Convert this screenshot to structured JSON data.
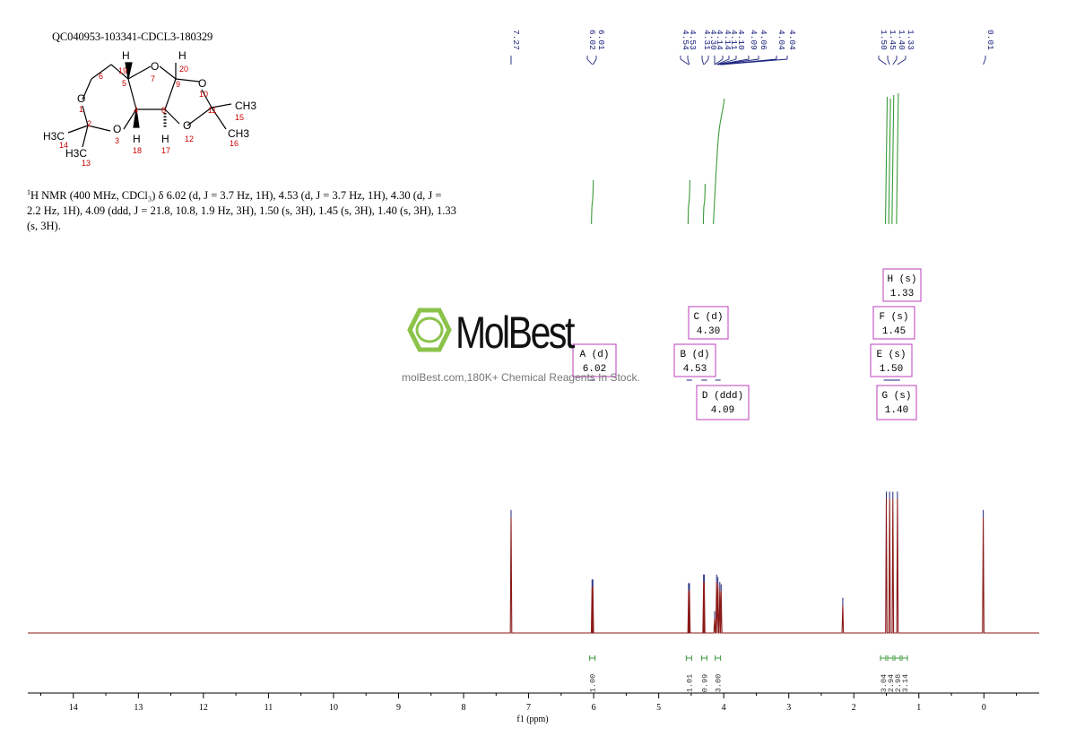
{
  "sample_id": "QC040953-103341-CDCL3-180329",
  "nmr_description": {
    "nucleus_sup": "1",
    "text": "H NMR (400 MHz, CDCl₃) δ 6.02 (d, J = 3.7 Hz, 1H), 4.53 (d, J = 3.7 Hz, 1H), 4.30 (d, J = 2.2 Hz, 1H), 4.09 (ddd, J = 21.8, 10.8, 1.9 Hz, 3H), 1.50 (s, 3H), 1.45 (s, 3H), 1.40 (s, 3H), 1.33 (s, 3H)."
  },
  "watermark": {
    "brand": "MolBest",
    "tagline": "molBest.com,180K+ Chemical Reagents In Stock."
  },
  "colors": {
    "spectrum": "#8b1a1a",
    "integral": "#3a9a3a",
    "peak_label": "#1a237e",
    "multiplet_box": "#c24fc2",
    "logo": "#8bc34a"
  },
  "molecule": {
    "atoms": [
      "H",
      "19",
      "O",
      "7",
      "H",
      "20",
      "6",
      "5",
      "9",
      "O",
      "10",
      "O",
      "1",
      "4",
      "8",
      "11",
      "CH3",
      "15",
      "2",
      "O",
      "3",
      "H",
      "18",
      "H",
      "17",
      "O",
      "12",
      "CH3",
      "16",
      "H3C",
      "14",
      "H3C",
      "13"
    ]
  },
  "chart_data": {
    "type": "line",
    "xlabel": "f1 (ppm)",
    "xlim": [
      14.7,
      -0.85
    ],
    "x_ticks": [
      "14",
      "13",
      "12",
      "11",
      "10",
      "9",
      "8",
      "7",
      "6",
      "5",
      "4",
      "3",
      "2",
      "1",
      "0"
    ],
    "peaks": [
      {
        "ppm": 7.27,
        "height": 0.95
      },
      {
        "ppm": 6.025,
        "height": 0.38
      },
      {
        "ppm": 6.012,
        "height": 0.38
      },
      {
        "ppm": 4.54,
        "height": 0.35
      },
      {
        "ppm": 4.528,
        "height": 0.35
      },
      {
        "ppm": 4.31,
        "height": 0.42
      },
      {
        "ppm": 4.3,
        "height": 0.42
      },
      {
        "ppm": 4.14,
        "height": 0.12
      },
      {
        "ppm": 4.11,
        "height": 0.42
      },
      {
        "ppm": 4.09,
        "height": 0.4
      },
      {
        "ppm": 4.06,
        "height": 0.36
      },
      {
        "ppm": 4.04,
        "height": 0.34
      },
      {
        "ppm": 2.17,
        "height": 0.23
      },
      {
        "ppm": 1.5,
        "height": 1.1
      },
      {
        "ppm": 1.45,
        "height": 1.1
      },
      {
        "ppm": 1.4,
        "height": 1.1
      },
      {
        "ppm": 1.33,
        "height": 1.1
      },
      {
        "ppm": 0.01,
        "height": 0.95
      }
    ],
    "peak_labels": [
      {
        "group": [
          7.27
        ],
        "labels": [
          "7.27"
        ]
      },
      {
        "group": [
          6.02,
          6.01
        ],
        "labels": [
          "6.02",
          "6.01"
        ]
      },
      {
        "group": [
          4.54,
          4.53,
          4.31,
          4.3,
          4.14,
          4.14,
          4.11,
          4.1,
          4.09,
          4.06,
          4.04,
          4.04
        ],
        "labels": [
          "4.54",
          "4.53",
          "4.31",
          "4.30",
          "4.14",
          "4.14",
          "4.11",
          "4.10",
          "4.09",
          "4.06",
          "4.04",
          "4.04"
        ]
      },
      {
        "group": [
          1.5,
          1.45,
          1.4,
          1.33
        ],
        "labels": [
          "1.50",
          "1.45",
          "1.40",
          "1.33"
        ]
      },
      {
        "group": [
          0.01
        ],
        "labels": [
          "0.01"
        ]
      }
    ],
    "multiplets": [
      {
        "name": "A",
        "type": "(d)",
        "shift": "6.02",
        "ppm": 6.02
      },
      {
        "name": "B",
        "type": "(d)",
        "shift": "4.53",
        "ppm": 4.53
      },
      {
        "name": "C",
        "type": "(d)",
        "shift": "4.30",
        "ppm": 4.3
      },
      {
        "name": "D",
        "type": "(ddd)",
        "shift": "4.09",
        "ppm": 4.09
      },
      {
        "name": "E",
        "type": "(s)",
        "shift": "1.50",
        "ppm": 1.5
      },
      {
        "name": "F",
        "type": "(s)",
        "shift": "1.45",
        "ppm": 1.45
      },
      {
        "name": "G",
        "type": "(s)",
        "shift": "1.40",
        "ppm": 1.4
      },
      {
        "name": "H",
        "type": "(s)",
        "shift": "1.33",
        "ppm": 1.33
      }
    ],
    "integrals": [
      {
        "from": 6.05,
        "to": 5.99,
        "value": "1.00"
      },
      {
        "from": 4.57,
        "to": 4.5,
        "value": "1.01"
      },
      {
        "from": 4.33,
        "to": 4.27,
        "value": "0.99"
      },
      {
        "from": 4.16,
        "to": 4.02,
        "value": "3.00"
      },
      {
        "from": 1.52,
        "to": 1.48,
        "value": "3.04"
      },
      {
        "from": 1.47,
        "to": 1.43,
        "value": "2.94"
      },
      {
        "from": 1.42,
        "to": 1.38,
        "value": "2.98"
      },
      {
        "from": 1.35,
        "to": 1.31,
        "value": "3.14"
      }
    ]
  }
}
